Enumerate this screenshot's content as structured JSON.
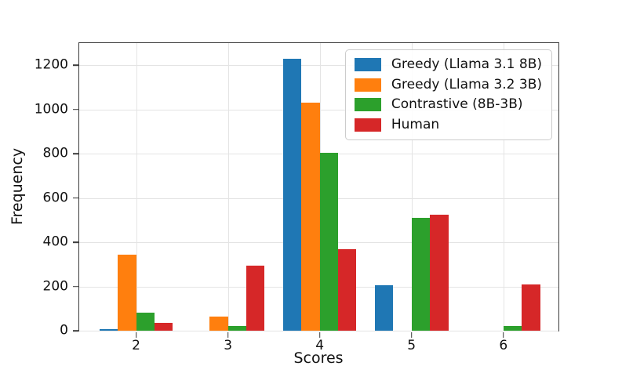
{
  "chart_data": {
    "type": "bar",
    "title": "",
    "xlabel": "Scores",
    "ylabel": "Frequency",
    "categories": [
      2,
      3,
      4,
      5,
      6
    ],
    "series": [
      {
        "name": "Greedy (Llama 3.1 8B)",
        "color": "#1f77b4",
        "values": [
          8,
          0,
          1230,
          205,
          0
        ]
      },
      {
        "name": "Greedy (Llama 3.2 3B)",
        "color": "#ff7f0e",
        "values": [
          345,
          65,
          1030,
          0,
          0
        ]
      },
      {
        "name": "Contrastive (8B-3B)",
        "color": "#2ca02c",
        "values": [
          80,
          20,
          805,
          510,
          20
        ]
      },
      {
        "name": "Human",
        "color": "#d62728",
        "values": [
          35,
          295,
          370,
          525,
          210
        ]
      }
    ],
    "bar_width": 0.2,
    "xlim": [
      1.38,
      6.6
    ],
    "ylim": [
      0,
      1300
    ],
    "yticks": [
      0,
      200,
      400,
      600,
      800,
      1000,
      1200
    ],
    "grid": true,
    "legend_position": "upper right",
    "colors": {
      "grid": "#e4e4e4",
      "spine": "#3a3a3a",
      "background": "#ffffff"
    }
  }
}
